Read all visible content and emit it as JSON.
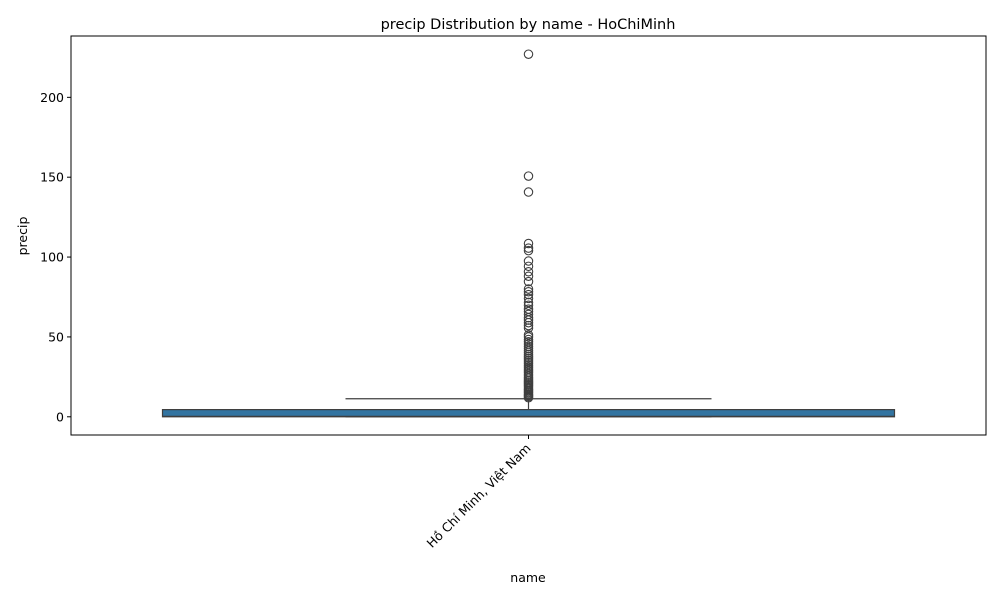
{
  "chart_data": {
    "type": "box",
    "title": "precip Distribution by name - HoChiMinh",
    "xlabel": "name",
    "ylabel": "precip",
    "categories": [
      "Hồ Chí Minh, Việt Nam"
    ],
    "ylim": [
      -11.4,
      238.4
    ],
    "yticks": [
      0,
      50,
      100,
      150,
      200
    ],
    "grid": false,
    "color": "#3274a1",
    "box": {
      "min": 0,
      "q1": 0,
      "median": 0.3,
      "q3": 4.5,
      "whisker_high": 11.3
    },
    "outliers": [
      227.0,
      150.7,
      140.7,
      108.5,
      105.6,
      104.0,
      97.5,
      94.2,
      90.8,
      88.0,
      84.6,
      80.0,
      78.3,
      76.5,
      74.1,
      71.6,
      69.8,
      67.4,
      65.9,
      64.1,
      62.0,
      60.5,
      58.9,
      57.1,
      55.6,
      51.3,
      50.0,
      48.4,
      47.0,
      45.6,
      44.1,
      42.8,
      41.5,
      40.3,
      39.1,
      37.9,
      36.7,
      35.5,
      34.4,
      33.2,
      32.1,
      31.0,
      29.9,
      28.8,
      27.7,
      26.6,
      25.6,
      24.6,
      23.6,
      22.6,
      21.6,
      20.7,
      19.8,
      18.9,
      18.0,
      17.2,
      16.4,
      15.6,
      14.8,
      14.0,
      13.3,
      12.6,
      11.9
    ]
  }
}
